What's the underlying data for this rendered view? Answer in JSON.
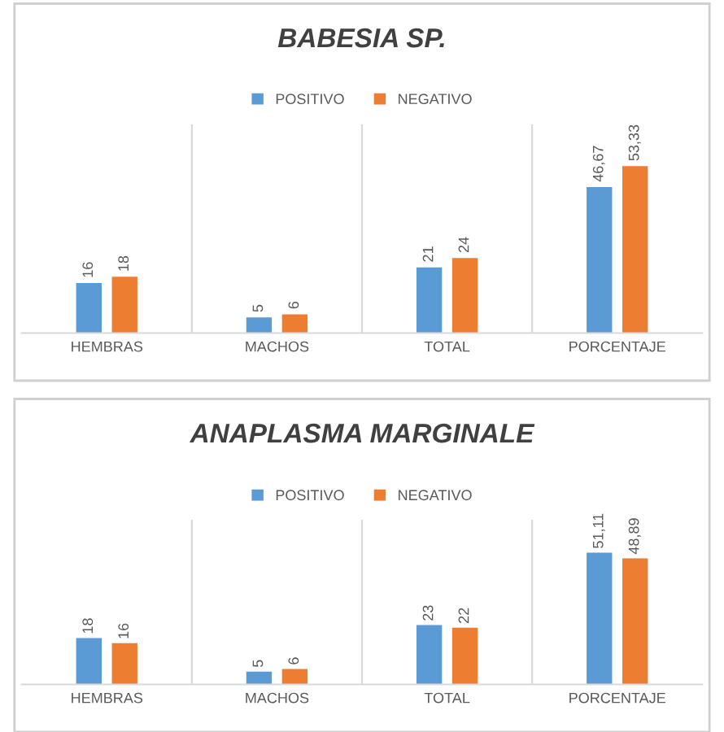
{
  "chart_data": [
    {
      "type": "bar",
      "title": "BABESIA SP.",
      "categories": [
        "HEMBRAS",
        "MACHOS",
        "TOTAL",
        "PORCENTAJE"
      ],
      "series": [
        {
          "name": "POSITIVO",
          "color": "#5b9bd5",
          "values": [
            16,
            5,
            21,
            46.67
          ],
          "value_labels": [
            "16",
            "5",
            "21",
            "46,67"
          ]
        },
        {
          "name": "NEGATIVO",
          "color": "#ed7d31",
          "values": [
            18,
            6,
            24,
            53.33
          ],
          "value_labels": [
            "18",
            "6",
            "24",
            "53,33"
          ]
        }
      ],
      "legend": "top",
      "grid": "x"
    },
    {
      "type": "bar",
      "title": "ANAPLASMA MARGINALE",
      "categories": [
        "HEMBRAS",
        "MACHOS",
        "TOTAL",
        "PORCENTAJE"
      ],
      "series": [
        {
          "name": "POSITIVO",
          "color": "#5b9bd5",
          "values": [
            18,
            5,
            23,
            51.11
          ],
          "value_labels": [
            "18",
            "5",
            "23",
            "51,11"
          ]
        },
        {
          "name": "NEGATIVO",
          "color": "#ed7d31",
          "values": [
            16,
            6,
            22,
            48.89
          ],
          "value_labels": [
            "16",
            "6",
            "22",
            "48,89"
          ]
        }
      ],
      "legend": "top",
      "grid": "x"
    }
  ]
}
